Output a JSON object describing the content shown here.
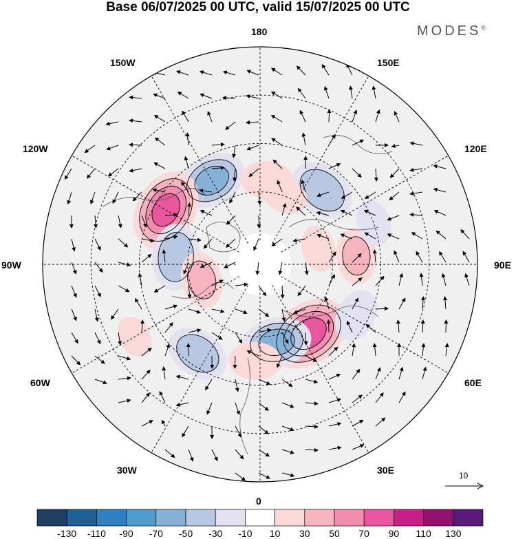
{
  "title": "Base 06/07/2025 00 UTC, valid 15/07/2025 00 UTC",
  "brand": "MODES",
  "brand_mark": "®",
  "longitude_labels": {
    "l180": "180",
    "l150e": "150E",
    "l120e": "120E",
    "l90e": "90E",
    "l60e": "60E",
    "l30e": "30E",
    "l0": "0",
    "l30w": "30W",
    "l60w": "60W",
    "l90w": "90W",
    "l120w": "120W",
    "l150w": "150W"
  },
  "reference_vector_label": "10",
  "colorbar": {
    "colors": [
      "#1f3f63",
      "#1f5f93",
      "#2e7fbf",
      "#4e9bcc",
      "#86b2d8",
      "#b9c8e2",
      "#e2e2f0",
      "#ffffff",
      "#fbd9d9",
      "#f5b4c0",
      "#f28cb0",
      "#e8569f",
      "#c81e87",
      "#92116e",
      "#5a1a7a"
    ],
    "tick_labels": [
      "-130",
      "-110",
      "-90",
      "-70",
      "-50",
      "-30",
      "-10",
      "10",
      "30",
      "50",
      "70",
      "90",
      "110",
      "130"
    ]
  },
  "anomaly_centers": [
    {
      "lat": 50,
      "lon": -150,
      "value": -60
    },
    {
      "lat": 55,
      "lon": 175,
      "value": 35
    },
    {
      "lat": 50,
      "lon": 140,
      "value": -55
    },
    {
      "lat": 60,
      "lon": 160,
      "value": 25
    },
    {
      "lat": 45,
      "lon": -120,
      "value": 80
    },
    {
      "lat": 55,
      "lon": -95,
      "value": -55
    },
    {
      "lat": 65,
      "lon": -75,
      "value": 40
    },
    {
      "lat": 50,
      "lon": 95,
      "value": 40
    },
    {
      "lat": 65,
      "lon": 105,
      "value": 25
    },
    {
      "lat": 55,
      "lon": 35,
      "value": 85
    },
    {
      "lat": 57,
      "lon": 12,
      "value": -60
    },
    {
      "lat": 45,
      "lon": 62,
      "value": -35
    },
    {
      "lat": 45,
      "lon": -35,
      "value": -50
    },
    {
      "lat": 50,
      "lon": -3,
      "value": 35
    },
    {
      "lat": 30,
      "lon": -60,
      "value": 20
    },
    {
      "lat": 40,
      "lon": 110,
      "value": -25
    }
  ]
}
